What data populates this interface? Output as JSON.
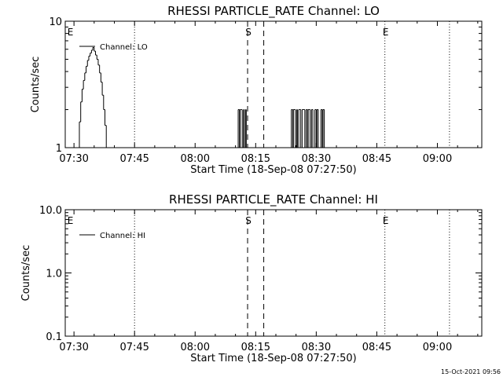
{
  "timestamp": "15-Oct-2021 09:56",
  "chart_data": [
    {
      "type": "line",
      "title": "RHESSI PARTICLE_RATE Channel: LO",
      "xlabel": "Start Time (18-Sep-08 07:27:50)",
      "ylabel": "Counts/sec",
      "yscale": "log",
      "ylim": [
        1,
        10
      ],
      "yticks": [
        "1",
        "10"
      ],
      "xlim": [
        "07:27:50",
        "09:11:00"
      ],
      "xticks": [
        "07:30",
        "07:45",
        "08:00",
        "08:15",
        "08:30",
        "08:45",
        "09:00"
      ],
      "legend": "top-left",
      "series": [
        {
          "name": "Channel: LO",
          "points": [
            [
              "07:31:00",
              1
            ],
            [
              "07:31:20",
              1.6
            ],
            [
              "07:31:40",
              2.3
            ],
            [
              "07:32:00",
              2.9
            ],
            [
              "07:32:20",
              3.4
            ],
            [
              "07:32:40",
              3.9
            ],
            [
              "07:33:00",
              4.4
            ],
            [
              "07:33:20",
              4.9
            ],
            [
              "07:33:40",
              5.3
            ],
            [
              "07:34:00",
              5.6
            ],
            [
              "07:34:20",
              5.9
            ],
            [
              "07:34:40",
              6.2
            ],
            [
              "07:35:00",
              5.8
            ],
            [
              "07:35:20",
              5.4
            ],
            [
              "07:35:40",
              5.0
            ],
            [
              "07:36:00",
              4.5
            ],
            [
              "07:36:20",
              3.9
            ],
            [
              "07:36:40",
              3.3
            ],
            [
              "07:37:00",
              2.6
            ],
            [
              "07:37:20",
              2.0
            ],
            [
              "07:37:40",
              1.5
            ],
            [
              "07:38:00",
              1.0
            ],
            [
              "08:10:30",
              1
            ],
            [
              "08:10:40",
              2
            ],
            [
              "08:11:00",
              1
            ],
            [
              "08:11:10",
              2
            ],
            [
              "08:11:30",
              2
            ],
            [
              "08:11:40",
              1
            ],
            [
              "08:12:00",
              2
            ],
            [
              "08:12:10",
              1
            ],
            [
              "08:12:30",
              2
            ],
            [
              "08:12:40",
              1
            ],
            [
              "08:23:40",
              1
            ],
            [
              "08:23:50",
              2
            ],
            [
              "08:24:10",
              1
            ],
            [
              "08:24:20",
              2
            ],
            [
              "08:24:40",
              2
            ],
            [
              "08:24:50",
              1
            ],
            [
              "08:25:10",
              2
            ],
            [
              "08:25:20",
              1
            ],
            [
              "08:25:40",
              2
            ],
            [
              "08:26:00",
              2
            ],
            [
              "08:26:10",
              1
            ],
            [
              "08:26:30",
              2
            ],
            [
              "08:27:00",
              2
            ],
            [
              "08:27:10",
              1
            ],
            [
              "08:27:30",
              2
            ],
            [
              "08:27:50",
              1
            ],
            [
              "08:28:00",
              2
            ],
            [
              "08:28:20",
              2
            ],
            [
              "08:28:30",
              1
            ],
            [
              "08:28:50",
              2
            ],
            [
              "08:29:10",
              1
            ],
            [
              "08:29:30",
              1
            ],
            [
              "08:29:40",
              2
            ],
            [
              "08:30:00",
              1
            ],
            [
              "08:30:10",
              2
            ],
            [
              "08:30:30",
              1
            ],
            [
              "08:31:00",
              1
            ],
            [
              "08:31:10",
              2
            ],
            [
              "08:31:30",
              1
            ],
            [
              "08:31:40",
              2
            ],
            [
              "08:32:00",
              1
            ]
          ]
        }
      ],
      "markers": [
        {
          "label": "E",
          "time": "07:28:10",
          "style": "none"
        },
        {
          "label": "",
          "time": "07:45:00",
          "style": "dotted"
        },
        {
          "label": "S",
          "time": "08:13:00",
          "style": "dashed"
        },
        {
          "label": "",
          "time": "08:17:00",
          "style": "dashed"
        },
        {
          "label": "E",
          "time": "08:47:00",
          "style": "dotted"
        },
        {
          "label": "",
          "time": "09:03:00",
          "style": "dotted"
        }
      ]
    },
    {
      "type": "line",
      "title": "RHESSI PARTICLE_RATE Channel: HI",
      "xlabel": "Start Time (18-Sep-08 07:27:50)",
      "ylabel": "Counts/sec",
      "yscale": "log",
      "ylim": [
        0.1,
        10
      ],
      "yticks": [
        "0.1",
        "1.0",
        "10.0"
      ],
      "xlim": [
        "07:27:50",
        "09:11:00"
      ],
      "xticks": [
        "07:30",
        "07:45",
        "08:00",
        "08:15",
        "08:30",
        "08:45",
        "09:00"
      ],
      "legend": "top-left",
      "series": [
        {
          "name": "Channel: HI",
          "points": []
        }
      ],
      "markers": [
        {
          "label": "E",
          "time": "07:28:10",
          "style": "none"
        },
        {
          "label": "",
          "time": "07:45:00",
          "style": "dotted"
        },
        {
          "label": "S",
          "time": "08:13:00",
          "style": "dashed"
        },
        {
          "label": "",
          "time": "08:17:00",
          "style": "dashed"
        },
        {
          "label": "E",
          "time": "08:47:00",
          "style": "dotted"
        },
        {
          "label": "",
          "time": "09:03:00",
          "style": "dotted"
        }
      ]
    }
  ]
}
